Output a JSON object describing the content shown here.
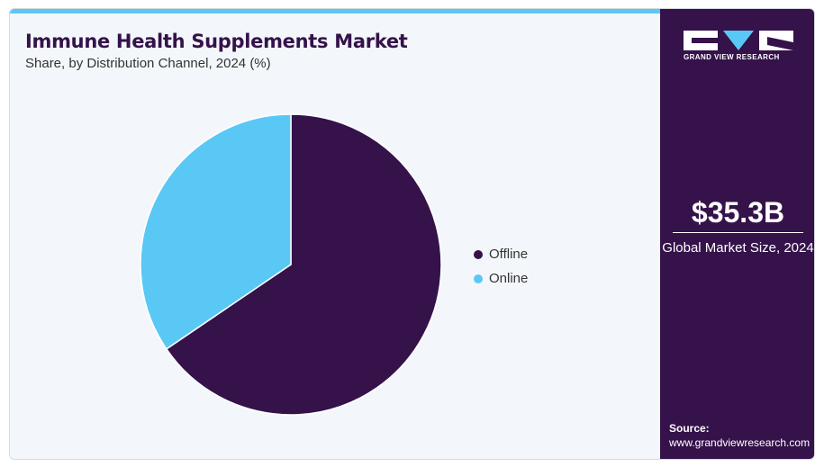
{
  "header": {
    "title": "Immune Health Supplements Market",
    "subtitle": "Share, by Distribution Channel, 2024 (%)"
  },
  "chart_data": {
    "type": "pie",
    "title": "Immune Health Supplements Market",
    "subtitle": "Share, by Distribution Channel, 2024 (%)",
    "categories": [
      "Offline",
      "Online"
    ],
    "values": [
      65.5,
      34.5
    ],
    "colors": [
      "#35124a",
      "#5ac8f5"
    ],
    "start_angle": "12 o'clock, clockwise",
    "legend_position": "right"
  },
  "sidebar": {
    "logo_text": "GRAND VIEW RESEARCH",
    "market_value": "$35.3B",
    "market_label": "Global Market Size, 2024",
    "source_label": "Source:",
    "source_url": "www.grandviewresearch.com"
  },
  "colors": {
    "brand_dark": "#35124a",
    "accent_blue": "#5ac8f5",
    "background": "#f3f7fb"
  }
}
